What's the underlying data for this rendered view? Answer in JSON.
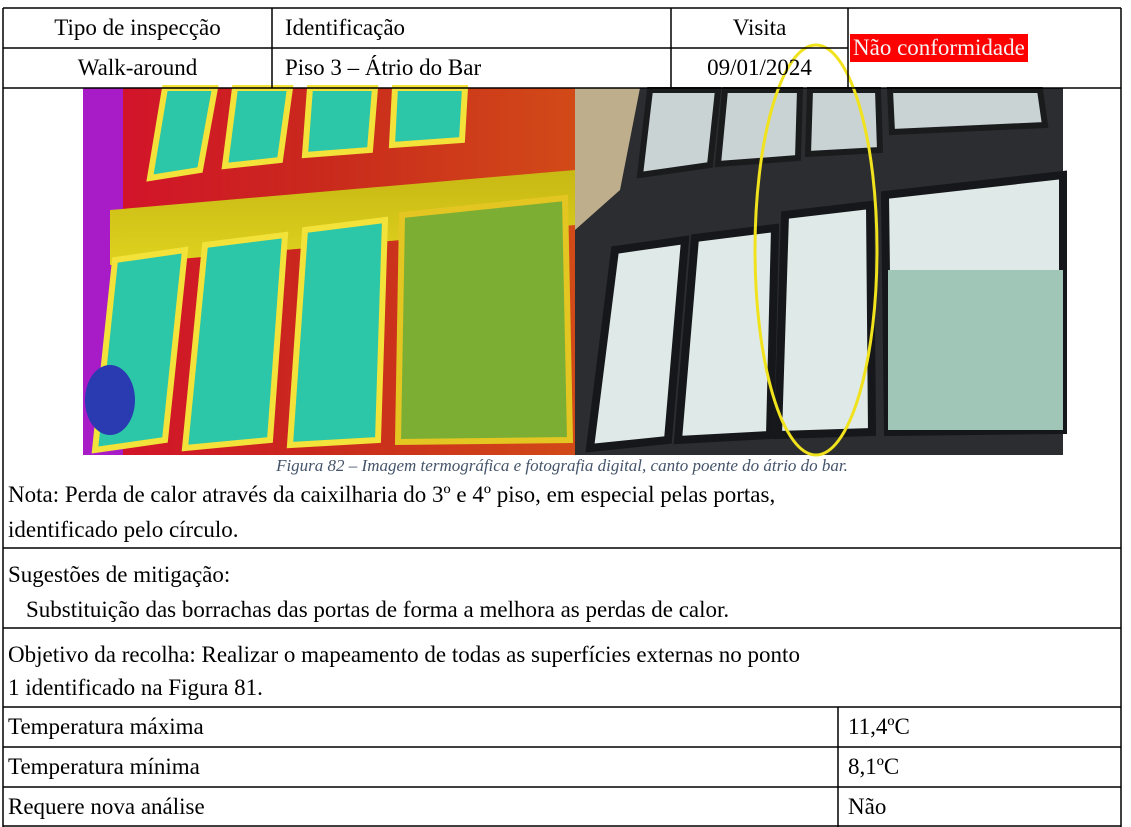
{
  "header": {
    "inspection_type_label": "Tipo de inspecção",
    "identification_label": "Identificação",
    "visit_label": "Visita",
    "status": "Não conformidade",
    "inspection_type": "Walk-around",
    "identification": "Piso 3 – Átrio do Bar",
    "visit_date": "09/01/2024"
  },
  "figure": {
    "caption": "Figura 82 – Imagem termográfica e fotografia digital, canto poente do átrio do bar."
  },
  "note": {
    "line1": "Nota: Perda de calor através da caixilharia do 3º e 4º piso, em especial pelas portas,",
    "line2": "identificado pelo círculo."
  },
  "mitigation": {
    "label": "Sugestões de mitigação:",
    "text": "Substituição das borrachas das portas de forma a melhora as perdas de calor."
  },
  "objective": {
    "line1": "Objetivo da recolha: Realizar o mapeamento de todas as superfícies externas no ponto",
    "line2": "1 identificado na Figura 81."
  },
  "measurements": {
    "rows": [
      [
        "Temperatura máxima",
        "11,4ºC"
      ],
      [
        "Temperatura mínima",
        "8,1ºC"
      ],
      [
        "Requere nova análise",
        "Não"
      ]
    ]
  }
}
